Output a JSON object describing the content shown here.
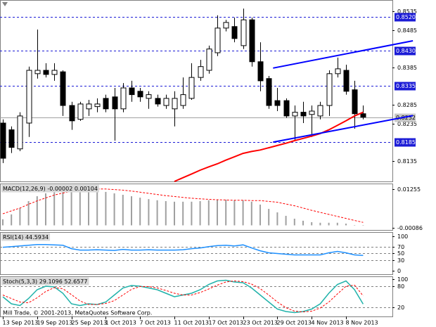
{
  "chart_data": [
    {
      "type": "candlestick",
      "categories": [
        "13 Sep 2013",
        null,
        null,
        null,
        "19 Sep 2013",
        null,
        null,
        null,
        "25 Sep 2013",
        null,
        null,
        null,
        "1 Oct 2013",
        null,
        null,
        null,
        "7 Oct 2013",
        null,
        null,
        null,
        "11 Oct 2013",
        null,
        null,
        null,
        "17 Oct 2013",
        null,
        null,
        null,
        "23 Oct 2013",
        null,
        null,
        null,
        "29 Oct 2013",
        null,
        null,
        null,
        "4 Nov 2013",
        null,
        null,
        null,
        "8 Nov 2013",
        null,
        null
      ],
      "open": [
        0.8236,
        0.8218,
        0.8167,
        0.8236,
        0.8368,
        0.8377,
        0.8366,
        0.8373,
        0.8283,
        0.8246,
        0.8274,
        0.828,
        0.8302,
        0.8306,
        0.8274,
        0.833,
        0.8321,
        0.8302,
        0.8302,
        0.8283,
        0.8274,
        0.8283,
        0.8302,
        0.8358,
        0.8377,
        0.8424,
        0.849,
        0.8494,
        0.8443,
        0.8512,
        0.84,
        0.8355,
        0.8296,
        0.8296,
        0.8255,
        0.8265,
        0.8259,
        0.8255,
        0.8283,
        0.8368,
        0.8377,
        0.8325,
        0.8261
      ],
      "high": [
        0.8246,
        0.8227,
        0.8265,
        0.8387,
        0.8486,
        0.8396,
        0.8396,
        0.8377,
        0.8293,
        0.8293,
        0.8298,
        0.8302,
        0.8312,
        0.833,
        0.8343,
        0.8349,
        0.833,
        0.8321,
        0.8312,
        0.8312,
        0.8321,
        0.8358,
        0.8396,
        0.8405,
        0.8443,
        0.8524,
        0.8512,
        0.8518,
        0.8542,
        0.8518,
        0.8452,
        0.8362,
        0.833,
        0.8302,
        0.8283,
        0.8293,
        0.8283,
        0.8293,
        0.8377,
        0.8411,
        0.8392,
        0.8349,
        0.8283
      ],
      "low": [
        0.8129,
        0.8156,
        0.8161,
        0.8199,
        0.8355,
        0.8358,
        0.8349,
        0.8255,
        0.8218,
        0.8242,
        0.8255,
        0.8265,
        0.8265,
        0.8189,
        0.8265,
        0.8293,
        0.8293,
        0.8274,
        0.828,
        0.8274,
        0.8227,
        0.8274,
        0.8298,
        0.8349,
        0.8368,
        0.8415,
        0.8481,
        0.8452,
        0.8434,
        0.8387,
        0.8321,
        0.8274,
        0.8268,
        0.825,
        0.8189,
        0.8236,
        0.8199,
        0.8246,
        0.8255,
        0.8358,
        0.8312,
        0.8221,
        0.8246
      ],
      "close": [
        0.8142,
        0.8171,
        0.8255,
        0.8377,
        0.8377,
        0.8366,
        0.8377,
        0.8283,
        0.8242,
        0.8287,
        0.8287,
        0.8287,
        0.8274,
        0.8274,
        0.833,
        0.8312,
        0.8306,
        0.8312,
        0.8287,
        0.8302,
        0.8302,
        0.8312,
        0.8358,
        0.8387,
        0.8434,
        0.849,
        0.8505,
        0.8462,
        0.8512,
        0.84,
        0.8349,
        0.8283,
        0.8283,
        0.8255,
        0.8265,
        0.8255,
        0.8268,
        0.8283,
        0.8368,
        0.8381,
        0.8321,
        0.8261,
        0.8252
      ],
      "ma": {
        "color": "#ff0000",
        "values": [
          null,
          null,
          null,
          null,
          null,
          null,
          null,
          null,
          null,
          null,
          null,
          null,
          null,
          null,
          null,
          null,
          null,
          null,
          null,
          null,
          0.808,
          0.809,
          0.81,
          0.811,
          0.8119,
          0.8127,
          0.8137,
          0.8146,
          0.8155,
          0.816,
          0.8164,
          0.817,
          0.8176,
          0.8182,
          0.8189,
          0.8195,
          0.8201,
          0.8208,
          0.8218,
          0.823,
          0.8242,
          0.8255,
          0.8265
        ]
      },
      "trendlines": [
        {
          "color": "#0000ff",
          "x": [
            31.5,
            47.8
          ],
          "y": [
            0.8383,
            0.8456
          ]
        },
        {
          "color": "#0000ff",
          "x": [
            31.5,
            47.8
          ],
          "y": [
            0.8185,
            0.8256
          ]
        }
      ],
      "levels": [
        {
          "value": 0.852,
          "label": "0.8520"
        },
        {
          "value": 0.843,
          "label": "0.8430"
        },
        {
          "value": 0.8335,
          "label": "0.8335"
        },
        {
          "value": 0.8185,
          "label": "0.8185"
        }
      ],
      "level_color": "#1c1cd6",
      "current": {
        "value": 0.8252,
        "label": "0.8252"
      },
      "ylim": [
        0.808,
        0.8565
      ],
      "yticks": [
        0.8535,
        0.8485,
        0.8385,
        0.8285,
        0.8235,
        0.8135
      ]
    },
    {
      "type": "macd",
      "title": "MACD(12,26,9)",
      "series": [
        {
          "color": "#a0a0a0",
          "style": "histogram",
          "values": [
            0.0021,
            0.0038,
            0.006,
            0.0084,
            0.0101,
            0.0111,
            0.0118,
            0.0123,
            0.0126,
            0.0126,
            0.0123,
            0.0121,
            0.0116,
            0.0111,
            0.0106,
            0.0101,
            0.0096,
            0.0091,
            0.0087,
            0.0084,
            0.0082,
            0.0082,
            0.0082,
            0.0084,
            0.0087,
            0.0089,
            0.0089,
            0.0087,
            0.0087,
            0.0082,
            0.0072,
            0.0057,
            0.0045,
            0.0033,
            0.0023,
            0.0016,
            0.0011,
            0.0009,
            0.0009,
            0.0009,
            0.0006,
            0.0001,
            -2e-05
          ]
        },
        {
          "color": "#ff0000",
          "style": "dashed",
          "values": [
            0.004,
            0.005,
            0.006,
            0.0073,
            0.0085,
            0.0095,
            0.0105,
            0.0112,
            0.0118,
            0.0122,
            0.0125,
            0.0126,
            0.0126,
            0.0124,
            0.0122,
            0.0119,
            0.0115,
            0.0111,
            0.0107,
            0.0103,
            0.01,
            0.0097,
            0.0094,
            0.0092,
            0.009,
            0.0089,
            0.0088,
            0.0087,
            0.0087,
            0.0086,
            0.0086,
            0.0083,
            0.008,
            0.0074,
            0.0068,
            0.006,
            0.0052,
            0.0045,
            0.0038,
            0.0031,
            0.0024,
            0.0017,
            0.00104
          ]
        }
      ],
      "ylim": [
        -0.0016,
        0.0145
      ],
      "yticks": [
        0.01255,
        -0.00086
      ]
    },
    {
      "type": "line",
      "title": "RSI(14)",
      "series": [
        {
          "color": "#1e90ff",
          "style": "solid",
          "values": [
            68,
            70,
            72,
            74,
            76,
            76,
            75,
            74,
            64,
            60,
            60,
            61,
            60,
            59,
            62,
            60,
            60,
            61,
            60,
            60,
            60,
            61,
            64,
            66,
            70,
            73,
            74,
            72,
            75,
            66,
            58,
            52,
            50,
            48,
            46,
            46,
            46,
            46,
            52,
            56,
            52,
            46,
            44.5934
          ]
        }
      ],
      "levels": [
        70,
        50,
        30
      ],
      "ylim": [
        -10,
        112
      ],
      "yticks": [
        100,
        70,
        50,
        30,
        0
      ]
    },
    {
      "type": "line",
      "title": "Stoch(5,3,3)",
      "series": [
        {
          "color": "#20b2aa",
          "style": "solid",
          "values": [
            50,
            30,
            25,
            45,
            70,
            80,
            78,
            60,
            30,
            25,
            30,
            28,
            35,
            55,
            75,
            82,
            80,
            75,
            70,
            60,
            50,
            55,
            60,
            70,
            85,
            95,
            97,
            92,
            90,
            75,
            55,
            35,
            15,
            8,
            5,
            8,
            15,
            30,
            60,
            85,
            95,
            70,
            29.1096
          ]
        },
        {
          "color": "#ff0000",
          "style": "dashed",
          "values": [
            55,
            45,
            35,
            33,
            47,
            65,
            76,
            73,
            56,
            38,
            28,
            28,
            31,
            39,
            55,
            71,
            79,
            79,
            75,
            68,
            60,
            55,
            55,
            62,
            72,
            83,
            92,
            95,
            93,
            86,
            73,
            55,
            35,
            19,
            9,
            7,
            9,
            18,
            35,
            58,
            80,
            83,
            52.6577
          ]
        }
      ],
      "levels": [
        80,
        20
      ],
      "ylim": [
        -6,
        108
      ],
      "yticks": [
        100,
        80,
        20
      ]
    }
  ],
  "footer": "Mill Trade, © 2001-2013, MetaQuotes Software Corp."
}
